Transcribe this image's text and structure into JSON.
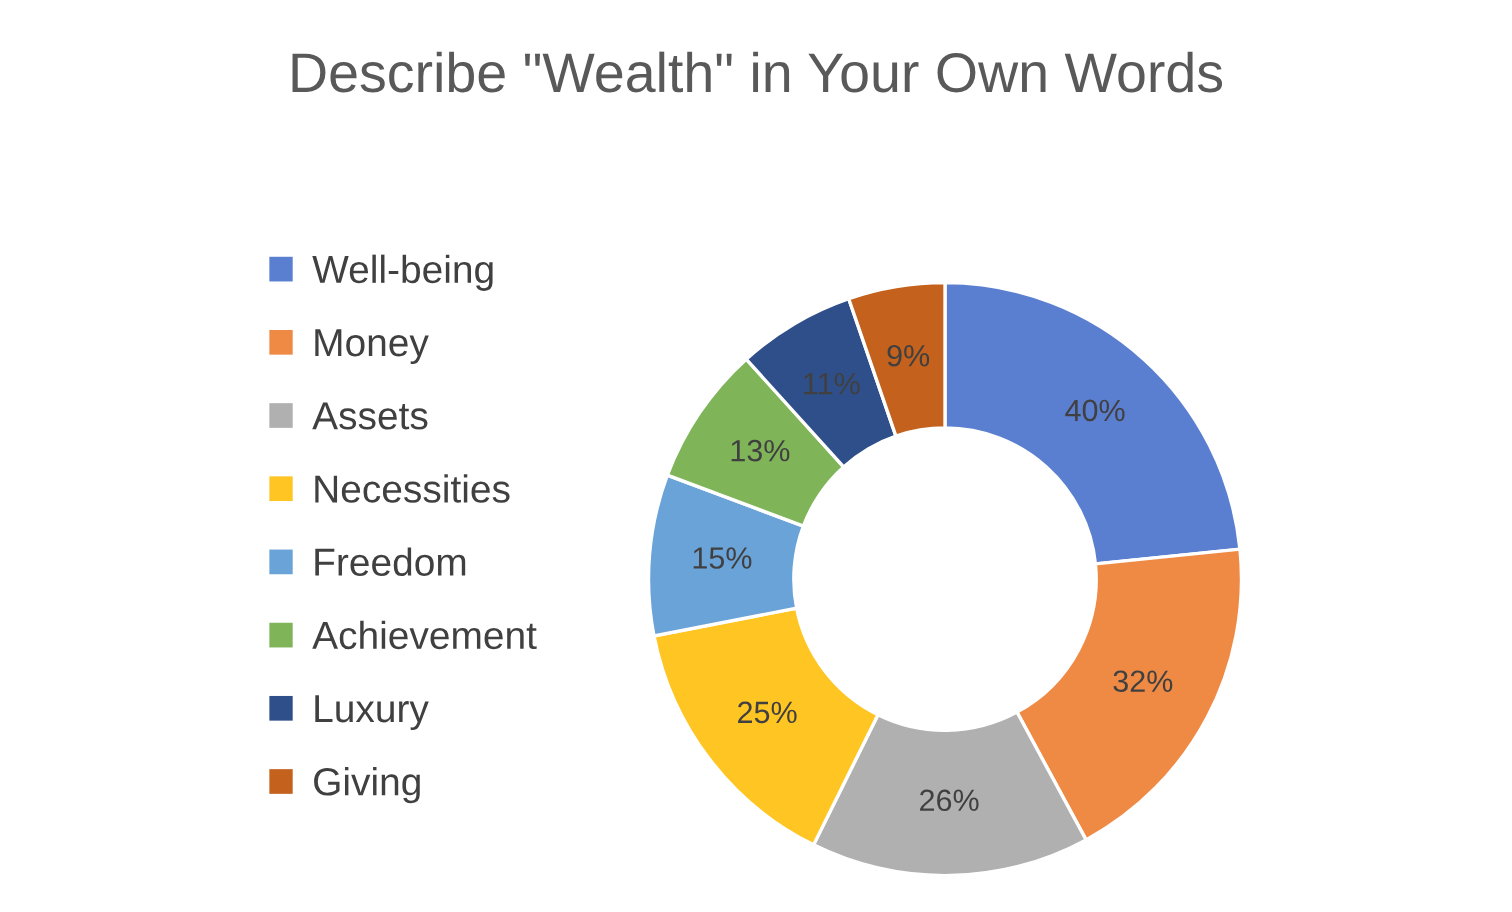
{
  "chart_data": {
    "type": "donut",
    "title": "Describe \"Wealth\" in Your Own Words",
    "categories": [
      "Well-being",
      "Money",
      "Assets",
      "Necessities",
      "Freedom",
      "Achievement",
      "Luxury",
      "Giving"
    ],
    "values": [
      40,
      32,
      26,
      25,
      15,
      13,
      11,
      9
    ],
    "value_labels": [
      "40%",
      "32%",
      "26%",
      "25%",
      "15%",
      "13%",
      "11%",
      "9%"
    ],
    "colors": [
      "#5b7fd0",
      "#ef8a45",
      "#b0b0b0",
      "#ffc522",
      "#6aa3d8",
      "#7fb558",
      "#2f4f8a",
      "#c4611c"
    ],
    "legend": "left"
  }
}
